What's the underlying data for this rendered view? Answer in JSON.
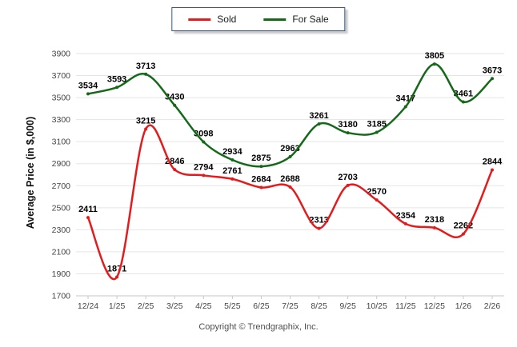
{
  "chart_data": {
    "type": "line",
    "title": "",
    "xlabel": "",
    "ylabel": "Average Price (in $,000)",
    "ylim": [
      1700,
      3900
    ],
    "ytick_step": 200,
    "grid": true,
    "legend_position": "top-center",
    "categories": [
      "12/24",
      "1/25",
      "2/25",
      "3/25",
      "4/25",
      "5/25",
      "6/25",
      "7/25",
      "8/25",
      "9/25",
      "10/25",
      "11/25",
      "12/25",
      "1/26",
      "2/26"
    ],
    "series": [
      {
        "name": "Sold",
        "color": "#e31b1c",
        "values": [
          2411,
          1871,
          3215,
          2846,
          2794,
          2761,
          2684,
          2688,
          2313,
          2703,
          2570,
          2354,
          2318,
          2262,
          2844
        ]
      },
      {
        "name": "For Sale",
        "color": "#146919",
        "values": [
          3534,
          3593,
          3713,
          3430,
          3098,
          2934,
          2875,
          2963,
          3261,
          3180,
          3185,
          3417,
          3805,
          3461,
          3673
        ]
      }
    ]
  },
  "footer": {
    "copyright": "Copyright © Trendgraphix, Inc."
  }
}
